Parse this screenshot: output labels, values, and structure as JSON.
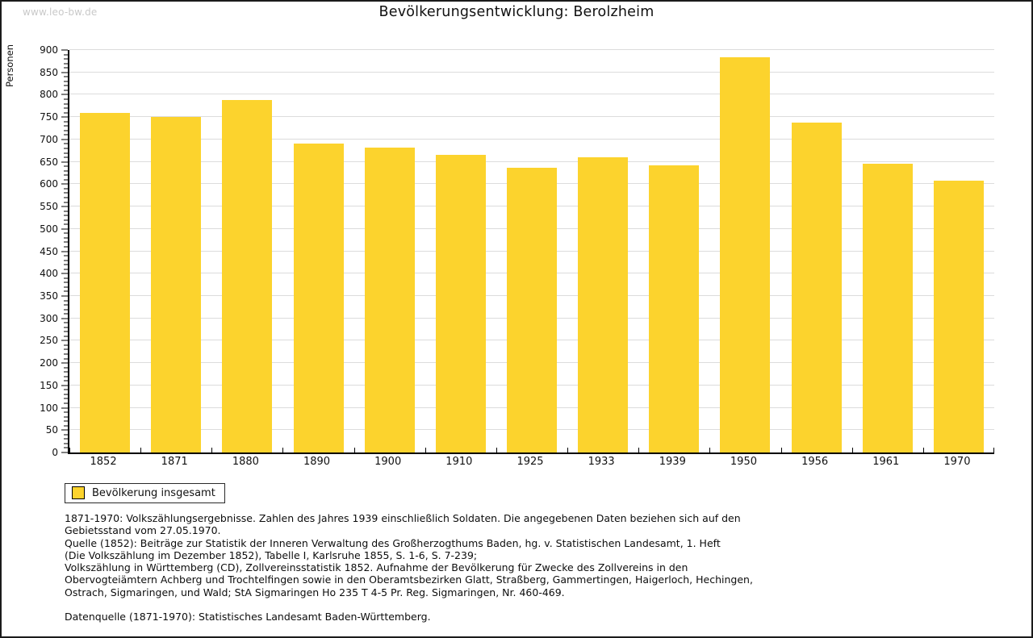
{
  "page": {
    "watermark": "www.leo-bw.de",
    "title": "Bevölkerungsentwicklung: Berolzheim"
  },
  "chart_data": {
    "type": "bar",
    "title": "Bevölkerungsentwicklung: Berolzheim",
    "xlabel": "",
    "ylabel": "Personen",
    "ylim": [
      0,
      900
    ],
    "ytick_step": 50,
    "minor_tick_step": 10,
    "grid": true,
    "legend_position": "bottom-left",
    "bar_color": "#FCD32D",
    "categories": [
      "1852",
      "1871",
      "1880",
      "1890",
      "1900",
      "1910",
      "1925",
      "1933",
      "1939",
      "1950",
      "1956",
      "1961",
      "1970"
    ],
    "series": [
      {
        "name": "Bevölkerung insgesamt",
        "values": [
          760,
          750,
          789,
          691,
          681,
          666,
          636,
          660,
          642,
          884,
          737,
          645,
          607
        ]
      }
    ]
  },
  "legend": {
    "label": "Bevölkerung insgesamt",
    "swatch_color": "#FCD32D"
  },
  "footnotes": {
    "lines": [
      "1871-1970: Volkszählungsergebnisse. Zahlen des Jahres 1939 einschließlich Soldaten. Die angegebenen Daten beziehen sich auf den",
      "Gebietsstand vom 27.05.1970.",
      "Quelle (1852): Beiträge zur Statistik der Inneren Verwaltung des Großherzogthums Baden, hg. v. Statistischen Landesamt, 1. Heft",
      "(Die Volkszählung im Dezember 1852), Tabelle I, Karlsruhe 1855, S. 1-6, S. 7-239;",
      "Volkszählung in Württemberg (CD), Zollvereinsstatistik 1852. Aufnahme der Bevölkerung für Zwecke des Zollvereins in den",
      "Obervogteiämtern Achberg und Trochtelfingen sowie in den Oberamtsbezirken Glatt, Straßberg, Gammertingen, Haigerloch, Hechingen,",
      "Ostrach, Sigmaringen, und Wald; StA Sigmaringen Ho 235 T 4-5 Pr. Reg. Sigmaringen, Nr. 460-469."
    ],
    "datasource": "Datenquelle (1871-1970): Statistisches Landesamt Baden-Württemberg."
  }
}
